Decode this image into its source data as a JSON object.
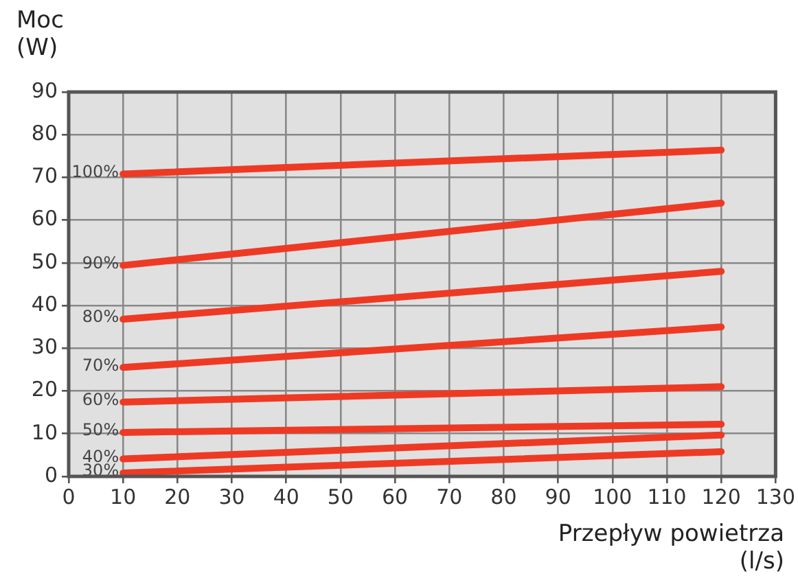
{
  "chart_data": {
    "type": "line",
    "xlabel": "Przepływ powietrza\n(l/s)",
    "ylabel": "Moc\n(W)",
    "x": [
      10,
      120
    ],
    "series": [
      {
        "name": "100%",
        "color": "#ee3a24",
        "values": [
          70.8,
          76.4
        ]
      },
      {
        "name": "90%",
        "color": "#ee3a24",
        "values": [
          49.4,
          64
        ]
      },
      {
        "name": "80%",
        "color": "#ee3a24",
        "values": [
          36.8,
          48
        ]
      },
      {
        "name": "70%",
        "color": "#ee3a24",
        "values": [
          25.5,
          35
        ]
      },
      {
        "name": "60%",
        "color": "#ee3a24",
        "values": [
          17.4,
          21
        ]
      },
      {
        "name": "50%",
        "color": "#ee3a24",
        "values": [
          10.3,
          12.2
        ]
      },
      {
        "name": "40%",
        "color": "#ee3a24",
        "values": [
          4.1,
          9.7
        ]
      },
      {
        "name": "30%",
        "color": "#ee3a24",
        "values": [
          0.8,
          5.8
        ]
      }
    ],
    "xlim": [
      0,
      130
    ],
    "xticks": [
      0,
      10,
      20,
      30,
      40,
      50,
      60,
      70,
      80,
      90,
      100,
      110,
      120,
      130
    ],
    "ylim": [
      0,
      90
    ],
    "yticks": [
      0,
      10,
      20,
      30,
      40,
      50,
      60,
      70,
      80,
      90
    ],
    "grid": true,
    "legend": false,
    "marker": "none",
    "line_style": "solid"
  }
}
